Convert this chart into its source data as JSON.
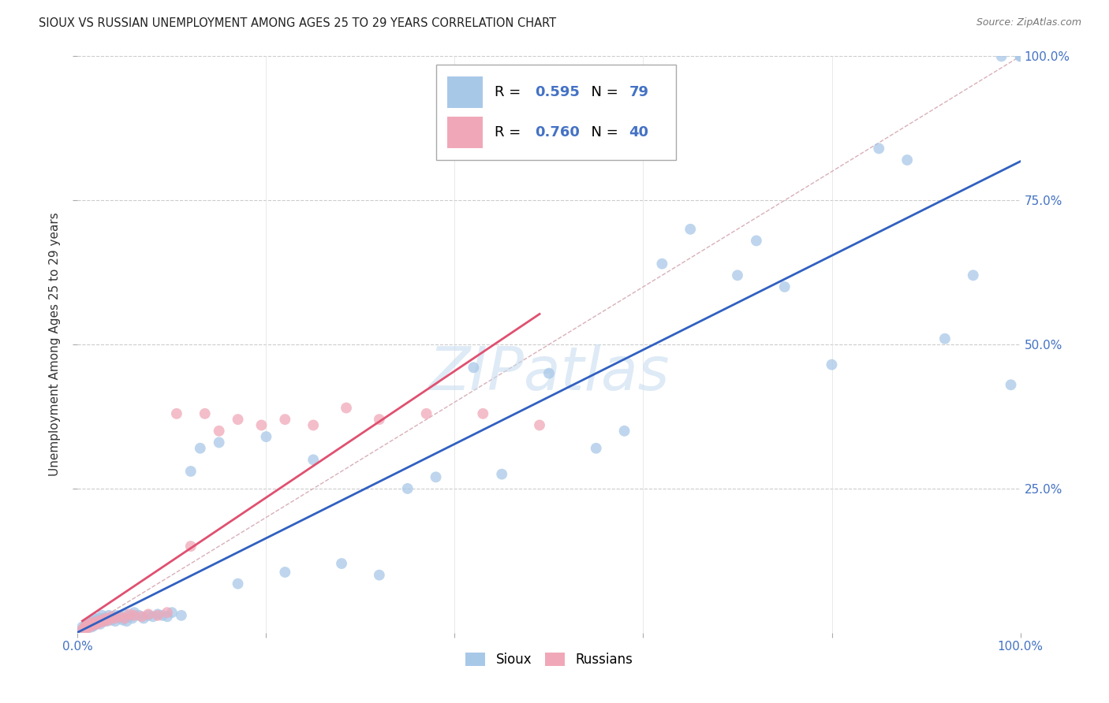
{
  "title": "SIOUX VS RUSSIAN UNEMPLOYMENT AMONG AGES 25 TO 29 YEARS CORRELATION CHART",
  "source": "Source: ZipAtlas.com",
  "ylabel": "Unemployment Among Ages 25 to 29 years",
  "xlim": [
    0.0,
    1.0
  ],
  "ylim": [
    0.0,
    1.0
  ],
  "background_color": "#ffffff",
  "grid_color": "#cccccc",
  "diagonal_color": "#d8b0b8",
  "sioux_color": "#a8c8e8",
  "russian_color": "#f0a8b8",
  "sioux_line_color": "#3060c0",
  "russian_line_color": "#e05070",
  "title_color": "#222222",
  "axis_label_color": "#444444",
  "tick_color": "#4472c4",
  "watermark_color": "#c8ddf0",
  "legend_text_color": "#000000",
  "legend_num_color": "#4472c4",
  "sioux_x": [
    0.005,
    0.005,
    0.007,
    0.008,
    0.01,
    0.01,
    0.012,
    0.012,
    0.013,
    0.015,
    0.015,
    0.016,
    0.017,
    0.018,
    0.018,
    0.02,
    0.02,
    0.021,
    0.022,
    0.023,
    0.024,
    0.025,
    0.026,
    0.027,
    0.028,
    0.03,
    0.031,
    0.033,
    0.035,
    0.036,
    0.038,
    0.04,
    0.042,
    0.045,
    0.048,
    0.05,
    0.052,
    0.055,
    0.058,
    0.06,
    0.065,
    0.07,
    0.075,
    0.08,
    0.085,
    0.09,
    0.095,
    0.1,
    0.11,
    0.12,
    0.13,
    0.15,
    0.17,
    0.2,
    0.22,
    0.25,
    0.28,
    0.32,
    0.35,
    0.38,
    0.42,
    0.45,
    0.5,
    0.55,
    0.58,
    0.62,
    0.65,
    0.7,
    0.72,
    0.75,
    0.8,
    0.85,
    0.88,
    0.92,
    0.95,
    0.98,
    0.99,
    1.0,
    1.0
  ],
  "sioux_y": [
    0.005,
    0.01,
    0.008,
    0.012,
    0.007,
    0.015,
    0.01,
    0.018,
    0.012,
    0.01,
    0.015,
    0.02,
    0.012,
    0.018,
    0.025,
    0.015,
    0.022,
    0.018,
    0.02,
    0.025,
    0.015,
    0.02,
    0.03,
    0.025,
    0.02,
    0.025,
    0.02,
    0.03,
    0.025,
    0.022,
    0.028,
    0.02,
    0.03,
    0.025,
    0.022,
    0.032,
    0.02,
    0.028,
    0.025,
    0.035,
    0.03,
    0.025,
    0.03,
    0.028,
    0.032,
    0.03,
    0.028,
    0.035,
    0.03,
    0.28,
    0.32,
    0.33,
    0.085,
    0.34,
    0.105,
    0.3,
    0.12,
    0.1,
    0.25,
    0.27,
    0.46,
    0.275,
    0.45,
    0.32,
    0.35,
    0.64,
    0.7,
    0.62,
    0.68,
    0.6,
    0.465,
    0.84,
    0.82,
    0.51,
    0.62,
    1.0,
    0.43,
    1.0,
    1.0
  ],
  "russian_x": [
    0.005,
    0.007,
    0.008,
    0.01,
    0.01,
    0.012,
    0.013,
    0.015,
    0.016,
    0.018,
    0.02,
    0.022,
    0.024,
    0.026,
    0.028,
    0.03,
    0.033,
    0.036,
    0.04,
    0.045,
    0.05,
    0.055,
    0.06,
    0.068,
    0.075,
    0.085,
    0.095,
    0.105,
    0.12,
    0.135,
    0.15,
    0.17,
    0.195,
    0.22,
    0.25,
    0.285,
    0.32,
    0.37,
    0.43,
    0.49
  ],
  "russian_y": [
    0.005,
    0.008,
    0.01,
    0.008,
    0.012,
    0.01,
    0.015,
    0.012,
    0.018,
    0.015,
    0.015,
    0.02,
    0.018,
    0.022,
    0.02,
    0.025,
    0.022,
    0.028,
    0.025,
    0.028,
    0.025,
    0.032,
    0.03,
    0.028,
    0.032,
    0.03,
    0.035,
    0.38,
    0.15,
    0.38,
    0.35,
    0.37,
    0.36,
    0.37,
    0.36,
    0.39,
    0.37,
    0.38,
    0.38,
    0.36
  ]
}
